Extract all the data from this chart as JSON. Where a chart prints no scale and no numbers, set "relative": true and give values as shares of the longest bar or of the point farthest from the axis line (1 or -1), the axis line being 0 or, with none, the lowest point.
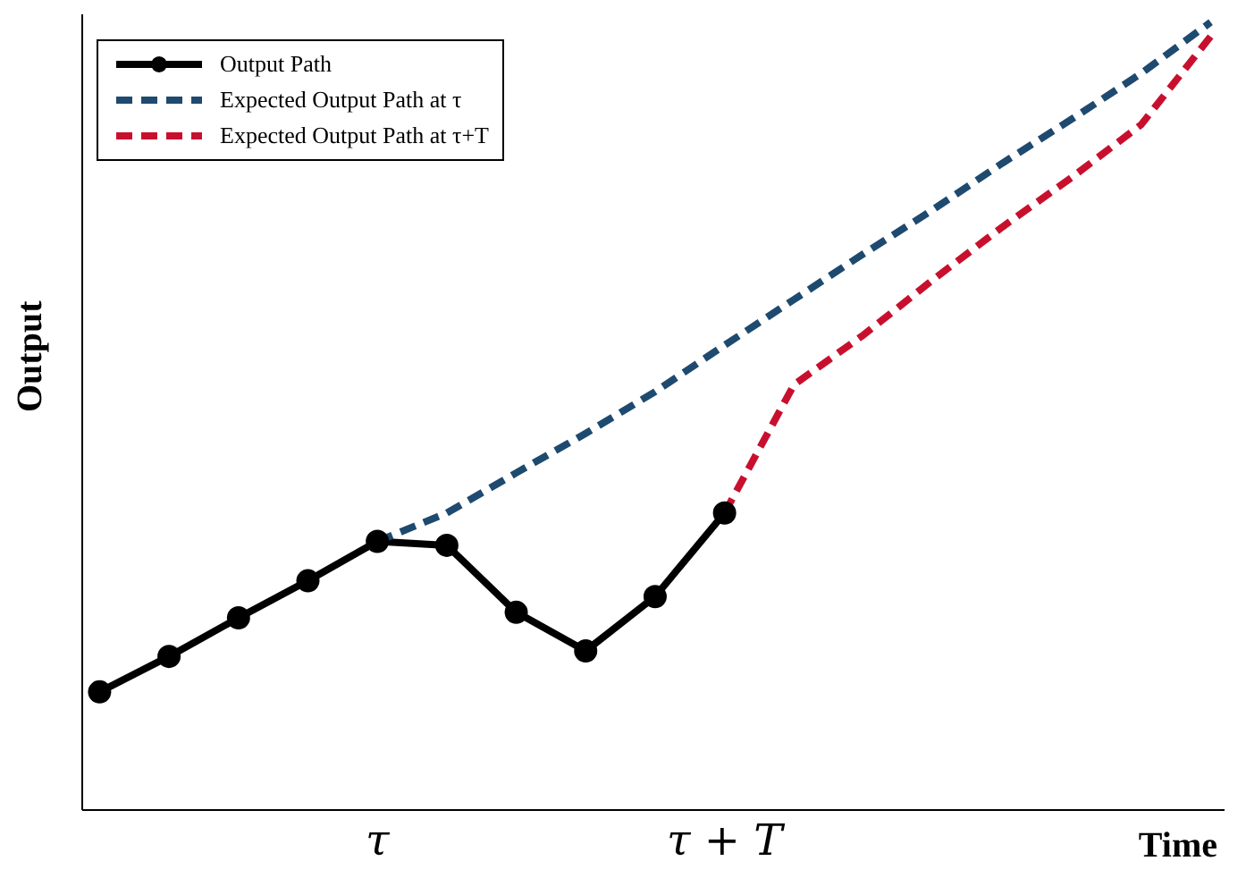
{
  "chart_data": {
    "type": "line",
    "relative": true,
    "xlabel": "Time",
    "ylabel": "Output",
    "categories": [
      null,
      null,
      null,
      null,
      "τ",
      null,
      null,
      null,
      null,
      "τ + T",
      null,
      null,
      null,
      null,
      null,
      null,
      null
    ],
    "series": [
      {
        "name": "Output Path",
        "color": "#000000",
        "marker": "circle",
        "line_style": "solid",
        "values": [
          0.15,
          0.195,
          0.244,
          0.291,
          0.341,
          0.336,
          0.251,
          0.202,
          0.271,
          0.377,
          null,
          null,
          null,
          null,
          null,
          null,
          null
        ]
      },
      {
        "name": "Expected Output Path at τ",
        "color": "#1f4a70",
        "marker": "none",
        "line_style": "dashed",
        "values": [
          null,
          null,
          null,
          null,
          0.341,
          0.377,
          0.428,
          0.478,
          0.531,
          0.59,
          0.648,
          0.706,
          0.762,
          0.821,
          0.877,
          0.935,
          1.0
        ]
      },
      {
        "name": "Expected Output Path at τ+T",
        "color": "#c8102e",
        "marker": "none",
        "line_style": "dashed",
        "values": [
          null,
          null,
          null,
          null,
          null,
          null,
          null,
          null,
          null,
          0.377,
          0.54,
          0.603,
          0.673,
          0.74,
          0.803,
          0.87,
          0.982
        ]
      }
    ],
    "grid": false,
    "legend": "top left"
  }
}
